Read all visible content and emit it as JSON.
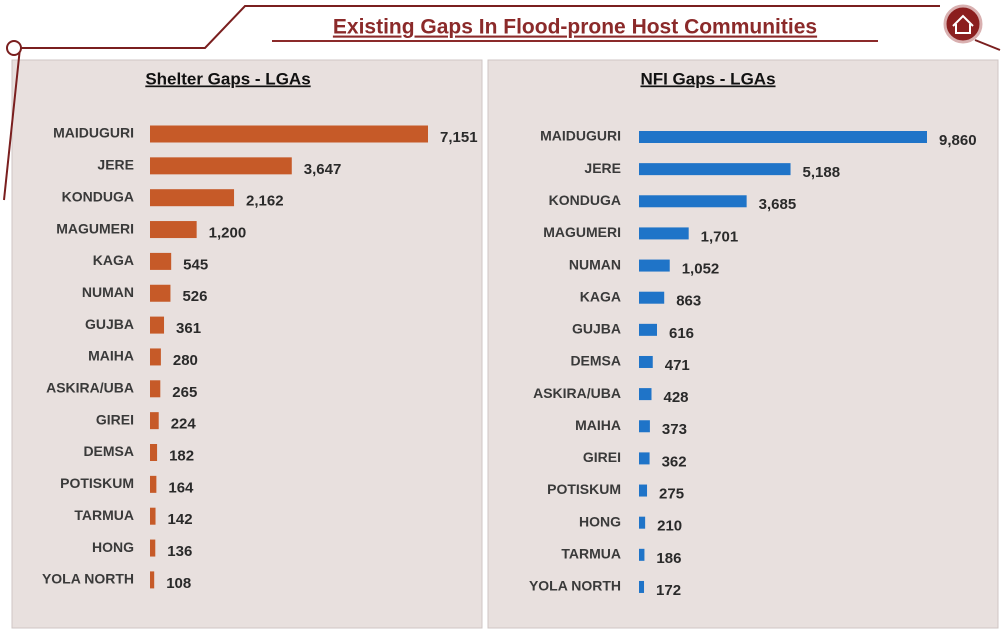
{
  "title": "Existing  Gaps In Flood-prone Host Communities",
  "chart_data": [
    {
      "type": "bar",
      "orientation": "horizontal",
      "title": "Shelter Gaps - LGAs",
      "color": "#c65a28",
      "categories": [
        "MAIDUGURI",
        "JERE",
        "KONDUGA",
        "MAGUMERI",
        "KAGA",
        "NUMAN",
        "GUJBA",
        "MAIHA",
        "ASKIRA/UBA",
        "GIREI",
        "DEMSA",
        "POTISKUM",
        "TARMUA",
        "HONG",
        "YOLA NORTH"
      ],
      "values": [
        7151,
        3647,
        2162,
        1200,
        545,
        526,
        361,
        280,
        265,
        224,
        182,
        164,
        142,
        136,
        108
      ],
      "value_labels": [
        "7,151",
        "3,647",
        "2,162",
        "1,200",
        "545",
        "526",
        "361",
        "280",
        "265",
        "224",
        "182",
        "164",
        "142",
        "136",
        "108"
      ]
    },
    {
      "type": "bar",
      "orientation": "horizontal",
      "title": "NFI Gaps - LGAs",
      "color": "#1f74c8",
      "categories": [
        "MAIDUGURI",
        "JERE",
        "KONDUGA",
        "MAGUMERI",
        "NUMAN",
        "KAGA",
        "GUJBA",
        "DEMSA",
        "ASKIRA/UBA",
        "MAIHA",
        "GIREI",
        "POTISKUM",
        "HONG",
        "TARMUA",
        "YOLA NORTH"
      ],
      "values": [
        9860,
        5188,
        3685,
        1701,
        1052,
        863,
        616,
        471,
        428,
        373,
        362,
        275,
        210,
        186,
        172
      ],
      "value_labels": [
        "9,860",
        "5,188",
        "3,685",
        "1,701",
        "1,052",
        "863",
        "616",
        "471",
        "428",
        "373",
        "362",
        "275",
        "210",
        "186",
        "172"
      ]
    }
  ]
}
